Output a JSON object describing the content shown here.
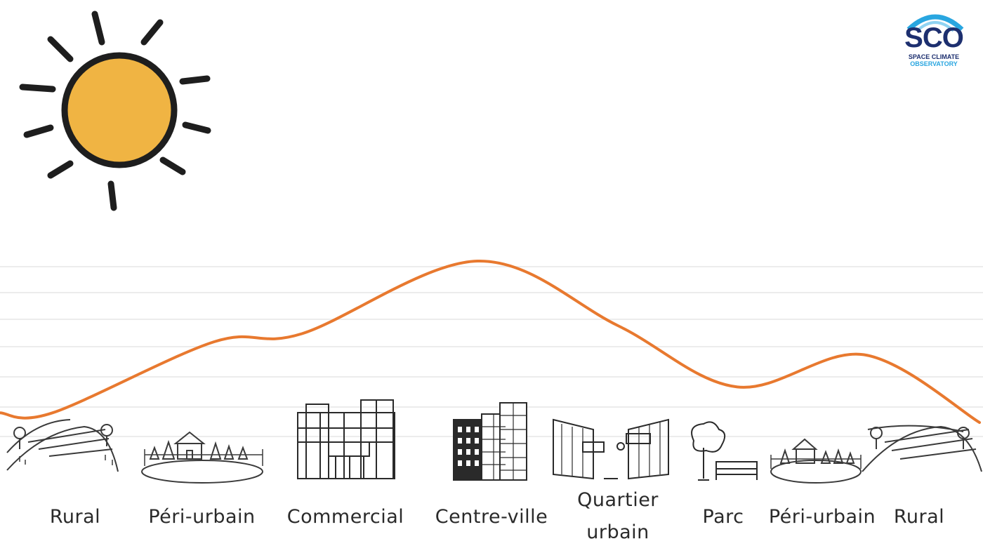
{
  "logo": {
    "abbr": "SCO",
    "line1": "SPACE CLIMATE",
    "line2": "OBSERVATORY"
  },
  "zones": [
    {
      "id": "rural-left",
      "label": "Rural",
      "level": 0.06
    },
    {
      "id": "peri-urbain-left",
      "label": "Péri-urbain",
      "level": 0.5
    },
    {
      "id": "commercial",
      "label": "Commercial",
      "level": 0.55
    },
    {
      "id": "centre-ville",
      "label": "Centre-ville",
      "level": 1.0
    },
    {
      "id": "quartier-urbain",
      "label": "Quartier urbain",
      "label_line1": "Quartier",
      "label_line2": "urbain",
      "level": 0.6
    },
    {
      "id": "parc",
      "label": "Parc",
      "level": 0.22
    },
    {
      "id": "peri-urbain-right",
      "label": "Péri-urbain",
      "level": 0.42
    },
    {
      "id": "rural-right",
      "label": "Rural",
      "level": 0.0
    }
  ],
  "colors": {
    "curve": "#e8792f",
    "sun": "#f0b443",
    "outline": "#1e1e1e",
    "gridline": "#ececec"
  }
}
